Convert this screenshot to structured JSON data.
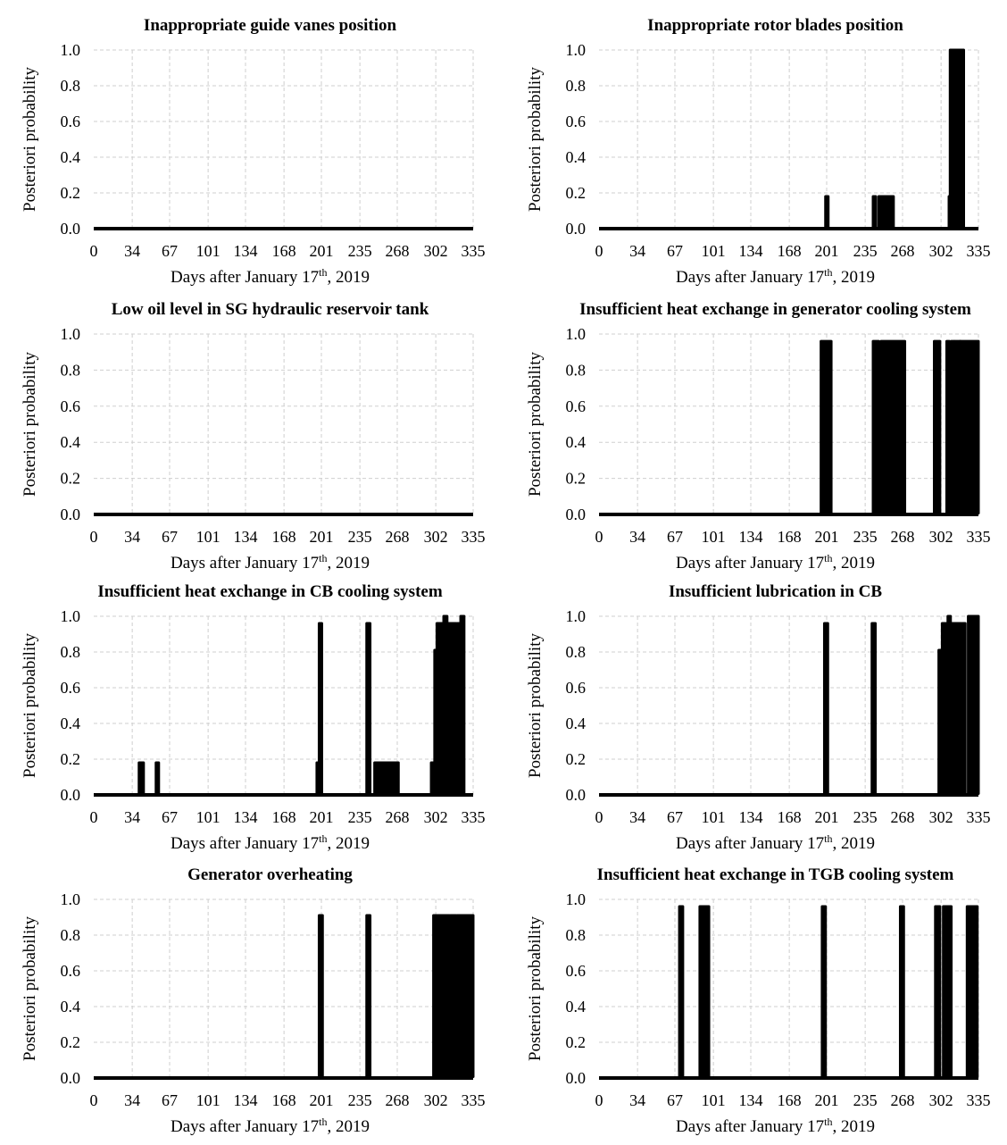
{
  "figure": {
    "xlabel_prefix": "Days after January 17",
    "xlabel_sup": "th",
    "xlabel_suffix": ", 2019",
    "ylabel": "Posteriori probability"
  },
  "chart_data": [
    {
      "type": "line",
      "title": "Inappropriate guide vanes position",
      "xlabel": "Days after January 17th, 2019",
      "ylabel": "Posteriori probability",
      "xlim": [
        0,
        335
      ],
      "ylim": [
        0,
        1.0
      ],
      "xticks": [
        0,
        34,
        67,
        101,
        134,
        168,
        201,
        235,
        268,
        302,
        335
      ],
      "yticks": [
        0.0,
        0.2,
        0.4,
        0.6,
        0.8,
        1.0
      ],
      "grid": true,
      "pulses": []
    },
    {
      "type": "line",
      "title": "Inappropriate rotor blades position",
      "xlabel": "Days after January 17th, 2019",
      "ylabel": "Posteriori probability",
      "xlim": [
        0,
        335
      ],
      "ylim": [
        0,
        1.0
      ],
      "xticks": [
        0,
        34,
        67,
        101,
        134,
        168,
        201,
        235,
        268,
        302,
        335
      ],
      "yticks": [
        0.0,
        0.2,
        0.4,
        0.6,
        0.8,
        1.0
      ],
      "grid": true,
      "pulses": [
        {
          "start": 200,
          "end": 201,
          "value": 0.18
        },
        {
          "start": 242,
          "end": 243,
          "value": 0.18
        },
        {
          "start": 247,
          "end": 260,
          "value": 0.18
        },
        {
          "start": 309,
          "end": 310,
          "value": 0.18
        },
        {
          "start": 310,
          "end": 312,
          "value": 1.0
        },
        {
          "start": 313,
          "end": 322,
          "value": 1.0
        }
      ]
    },
    {
      "type": "line",
      "title": "Low oil level in SG hydraulic reservoir tank",
      "xlabel": "Days after January 17th, 2019",
      "ylabel": "Posteriori probability",
      "xlim": [
        0,
        335
      ],
      "ylim": [
        0,
        1.0
      ],
      "xticks": [
        0,
        34,
        67,
        101,
        134,
        168,
        201,
        235,
        268,
        302,
        335
      ],
      "yticks": [
        0.0,
        0.2,
        0.4,
        0.6,
        0.8,
        1.0
      ],
      "grid": true,
      "pulses": []
    },
    {
      "type": "line",
      "title": "Insufficient heat exchange in generator cooling system",
      "xlabel": "Days after January 17th, 2019",
      "ylabel": "Posteriori probability",
      "xlim": [
        0,
        335
      ],
      "ylim": [
        0,
        1.0
      ],
      "xticks": [
        0,
        34,
        67,
        101,
        134,
        168,
        201,
        235,
        268,
        302,
        335
      ],
      "yticks": [
        0.0,
        0.2,
        0.4,
        0.6,
        0.8,
        1.0
      ],
      "grid": true,
      "pulses": [
        {
          "start": 196,
          "end": 205,
          "value": 0.96
        },
        {
          "start": 242,
          "end": 247,
          "value": 0.96
        },
        {
          "start": 249,
          "end": 270,
          "value": 0.96
        },
        {
          "start": 296,
          "end": 301,
          "value": 0.96
        },
        {
          "start": 307,
          "end": 309,
          "value": 0.96
        },
        {
          "start": 311,
          "end": 313,
          "value": 0.96
        },
        {
          "start": 314,
          "end": 319,
          "value": 0.96
        },
        {
          "start": 319,
          "end": 335,
          "value": 0.96
        }
      ]
    },
    {
      "type": "line",
      "title": "Insufficient heat exchange in CB cooling system",
      "xlabel": "Days after January 17th, 2019",
      "ylabel": "Posteriori probability",
      "xlim": [
        0,
        335
      ],
      "ylim": [
        0,
        1.0
      ],
      "xticks": [
        0,
        34,
        67,
        101,
        134,
        168,
        201,
        235,
        268,
        302,
        335
      ],
      "yticks": [
        0.0,
        0.2,
        0.4,
        0.6,
        0.8,
        1.0
      ],
      "grid": true,
      "pulses": [
        {
          "start": 40,
          "end": 44,
          "value": 0.18
        },
        {
          "start": 55,
          "end": 56,
          "value": 0.18
        },
        {
          "start": 197,
          "end": 198,
          "value": 0.18
        },
        {
          "start": 199,
          "end": 201,
          "value": 0.96
        },
        {
          "start": 241,
          "end": 244,
          "value": 0.96
        },
        {
          "start": 248,
          "end": 269,
          "value": 0.18
        },
        {
          "start": 298,
          "end": 301,
          "value": 0.18
        },
        {
          "start": 301,
          "end": 303,
          "value": 0.81
        },
        {
          "start": 303,
          "end": 309,
          "value": 0.96
        },
        {
          "start": 309,
          "end": 312,
          "value": 1.0
        },
        {
          "start": 312,
          "end": 320,
          "value": 0.96
        },
        {
          "start": 321,
          "end": 322,
          "value": 0.96
        },
        {
          "start": 324,
          "end": 327,
          "value": 1.0
        }
      ]
    },
    {
      "type": "line",
      "title": "Insufficient lubrication in CB",
      "xlabel": "Days after January 17th, 2019",
      "ylabel": "Posteriori probability",
      "xlim": [
        0,
        335
      ],
      "ylim": [
        0,
        1.0
      ],
      "xticks": [
        0,
        34,
        67,
        101,
        134,
        168,
        201,
        235,
        268,
        302,
        335
      ],
      "yticks": [
        0.0,
        0.2,
        0.4,
        0.6,
        0.8,
        1.0
      ],
      "grid": true,
      "pulses": [
        {
          "start": 199,
          "end": 202,
          "value": 0.96
        },
        {
          "start": 241,
          "end": 244,
          "value": 0.96
        },
        {
          "start": 300,
          "end": 303,
          "value": 0.81
        },
        {
          "start": 303,
          "end": 308,
          "value": 0.96
        },
        {
          "start": 308,
          "end": 310,
          "value": 1.0
        },
        {
          "start": 310,
          "end": 320,
          "value": 0.96
        },
        {
          "start": 321,
          "end": 323,
          "value": 0.96
        },
        {
          "start": 326,
          "end": 335,
          "value": 1.0
        }
      ]
    },
    {
      "type": "line",
      "title": "Generator overheating",
      "xlabel": "Days after January 17th, 2019",
      "ylabel": "Posteriori probability",
      "xlim": [
        0,
        335
      ],
      "ylim": [
        0,
        1.0
      ],
      "xticks": [
        0,
        34,
        67,
        101,
        134,
        168,
        201,
        235,
        268,
        302,
        335
      ],
      "yticks": [
        0.0,
        0.2,
        0.4,
        0.6,
        0.8,
        1.0
      ],
      "grid": true,
      "pulses": [
        {
          "start": 199,
          "end": 202,
          "value": 0.91
        },
        {
          "start": 241,
          "end": 244,
          "value": 0.91
        },
        {
          "start": 300,
          "end": 314,
          "value": 0.91
        },
        {
          "start": 315,
          "end": 320,
          "value": 0.91
        },
        {
          "start": 321,
          "end": 335,
          "value": 0.91
        }
      ]
    },
    {
      "type": "line",
      "title": "Insufficient heat exchange in TGB cooling system",
      "xlabel": "Days after January 17th, 2019",
      "ylabel": "Posteriori probability",
      "xlim": [
        0,
        335
      ],
      "ylim": [
        0,
        1.0
      ],
      "xticks": [
        0,
        34,
        67,
        101,
        134,
        168,
        201,
        235,
        268,
        302,
        335
      ],
      "yticks": [
        0.0,
        0.2,
        0.4,
        0.6,
        0.8,
        1.0
      ],
      "grid": true,
      "pulses": [
        {
          "start": 71,
          "end": 74,
          "value": 0.96
        },
        {
          "start": 89,
          "end": 97,
          "value": 0.96
        },
        {
          "start": 197,
          "end": 200,
          "value": 0.96
        },
        {
          "start": 266,
          "end": 269,
          "value": 0.96
        },
        {
          "start": 297,
          "end": 301,
          "value": 0.96
        },
        {
          "start": 304,
          "end": 311,
          "value": 0.96
        },
        {
          "start": 325,
          "end": 334,
          "value": 0.96
        }
      ]
    }
  ]
}
